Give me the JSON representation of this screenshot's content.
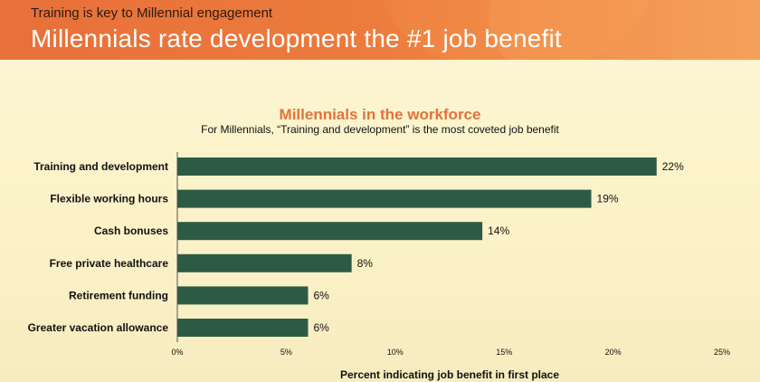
{
  "header": {
    "kicker": "Training is key to Millennial engagement",
    "headline": "Millennials rate development the #1 job benefit"
  },
  "colors": {
    "bar": "#2d5a45",
    "header_orange": "#e8703a",
    "title_orange": "#e2733a"
  },
  "chart_data": {
    "type": "bar",
    "orientation": "horizontal",
    "title": "Millennials in the workforce",
    "subtitle": "For Millennials, “Training and development” is the most coveted job benefit",
    "categories": [
      "Training and development",
      "Flexible working hours",
      "Cash bonuses",
      "Free private healthcare",
      "Retirement funding",
      "Greater vacation allowance"
    ],
    "values": [
      22,
      19,
      14,
      8,
      6,
      6
    ],
    "value_labels": [
      "22%",
      "19%",
      "14%",
      "8%",
      "6%",
      "6%"
    ],
    "xlim": [
      0,
      25
    ],
    "x_ticks": [
      0,
      5,
      10,
      15,
      20,
      25
    ],
    "x_tick_labels": [
      "0%",
      "5%",
      "10%",
      "15%",
      "20%",
      "25%"
    ],
    "xlabel": "Percent indicating job benefit in first place",
    "ylabel": "",
    "grid": false,
    "legend": "none"
  }
}
